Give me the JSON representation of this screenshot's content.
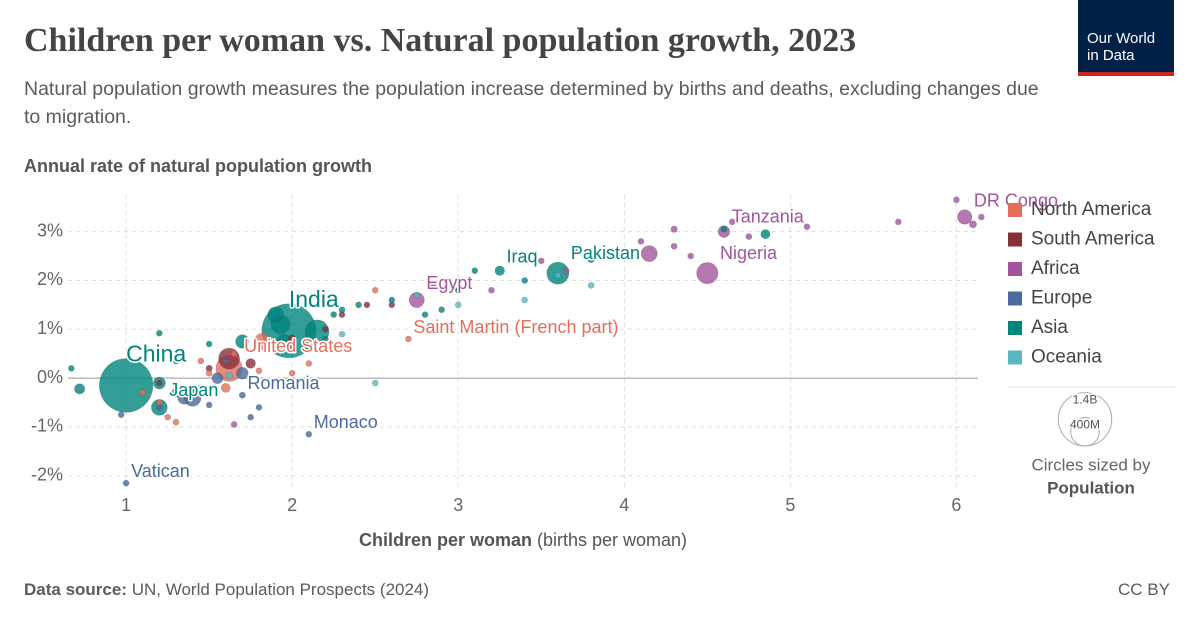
{
  "header": {
    "title": "Children per woman vs. Natural population growth, 2023",
    "subtitle": "Natural population growth measures the population increase determined by births and deaths, excluding changes due to migration.",
    "logo": "Our World in Data"
  },
  "footer": {
    "source_label": "Data source:",
    "source": "UN, World Population Prospects (2024)",
    "license": "CC BY"
  },
  "chart_data": {
    "type": "scatter",
    "y_label": "Annual rate of natural population growth",
    "x_label": "Children per woman",
    "x_label_unit": "(births per woman)",
    "xlim": [
      0.65,
      6.13
    ],
    "xticks": [
      1,
      2,
      3,
      4,
      5,
      6
    ],
    "ylim": [
      -2.25,
      3.75
    ],
    "yticks": [
      {
        "value": -2,
        "label": "-2%"
      },
      {
        "value": -1,
        "label": "-1%"
      },
      {
        "value": 0,
        "label": "0%"
      },
      {
        "value": 1,
        "label": "1%"
      },
      {
        "value": 2,
        "label": "2%"
      },
      {
        "value": 3,
        "label": "3%"
      }
    ],
    "grid": true,
    "size_legend": {
      "title": "Circles sized by",
      "variable": "Population",
      "sizes": [
        {
          "value": 1400000000,
          "label": "1.4B"
        },
        {
          "value": 400000000,
          "label": "400M"
        }
      ]
    },
    "series": [
      {
        "name": "North America",
        "color": "#e56e5a",
        "x": [
          1.62,
          2.7,
          1.82,
          1.2,
          1.25,
          1.5,
          1.65,
          1.8,
          2.0,
          1.1,
          1.3,
          1.45,
          2.5,
          2.1,
          2.3,
          1.6
        ],
        "values": [
          0.2,
          0.8,
          0.75,
          -0.5,
          -0.8,
          0.1,
          0.5,
          0.15,
          0.1,
          -0.3,
          -0.9,
          0.35,
          1.8,
          0.3,
          0.6,
          -0.2
        ],
        "sizes": [
          335000000,
          32000,
          128000000,
          1000000,
          500000,
          3000000,
          4000000,
          3000000,
          2000000,
          1000000,
          500000,
          6000000,
          1000000,
          2000000,
          10000000,
          40000000
        ],
        "labels": [
          "United States",
          "Saint Martin (French part)",
          null,
          null,
          null,
          null,
          null,
          null,
          null,
          null,
          null,
          null,
          null,
          null,
          null,
          null
        ]
      },
      {
        "name": "South America",
        "color": "#883039",
        "x": [
          1.62,
          1.2,
          1.9,
          2.3,
          2.2,
          1.5,
          2.45,
          2.0,
          1.75,
          2.6
        ],
        "values": [
          0.4,
          -0.1,
          0.6,
          1.3,
          1.0,
          0.2,
          1.5,
          0.8,
          0.3,
          1.5
        ],
        "sizes": [
          216000000,
          3000000,
          20000000,
          12000000,
          9000000,
          20000000,
          2000000,
          34000000,
          46000000,
          7000000
        ],
        "labels": [
          null,
          null,
          null,
          null,
          null,
          null,
          null,
          null,
          null,
          null
        ]
      },
      {
        "name": "Africa",
        "color": "#a2559c",
        "x": [
          6.05,
          4.6,
          4.5,
          2.75,
          4.15,
          6.0,
          6.1,
          6.15,
          5.65,
          5.1,
          4.3,
          4.3,
          4.1,
          3.9,
          3.7,
          3.5,
          3.0,
          4.65,
          4.4,
          1.65,
          3.2,
          4.75,
          2.85,
          3.65
        ],
        "values": [
          3.3,
          3.0,
          2.15,
          1.6,
          2.55,
          3.65,
          3.15,
          3.3,
          3.2,
          3.1,
          3.05,
          2.7,
          2.8,
          2.5,
          2.6,
          2.4,
          2.0,
          3.2,
          2.5,
          -0.95,
          1.8,
          2.9,
          1.9,
          2.2
        ],
        "sizes": [
          102000000,
          67000000,
          223000000,
          113000000,
          126000000,
          8000000,
          25000000,
          5000000,
          6000000,
          5000000,
          20000000,
          15000000,
          6000000,
          10000000,
          8000000,
          6000000,
          12000000,
          10000000,
          8000000,
          2000000,
          4000000,
          8000000,
          5000000,
          6000000
        ],
        "labels": [
          "DR Congo",
          "Tanzania",
          "Nigeria",
          "Egypt",
          null,
          null,
          null,
          null,
          null,
          null,
          null,
          null,
          null,
          null,
          null,
          null,
          null,
          null,
          null,
          null,
          null,
          null,
          null,
          null
        ]
      },
      {
        "name": "Europe",
        "color": "#4c6a9c",
        "x": [
          1.7,
          2.1,
          1.0,
          1.4,
          1.35,
          1.2,
          0.97,
          1.5,
          1.3,
          1.8,
          1.55,
          1.7,
          1.75,
          1.45,
          1.6
        ],
        "values": [
          -0.35,
          -1.15,
          -2.15,
          -0.4,
          -0.4,
          -0.6,
          -0.75,
          -0.55,
          -0.3,
          -0.6,
          0.0,
          0.1,
          -0.8,
          -0.2,
          0.35
        ],
        "sizes": [
          19000000,
          38000,
          500,
          144000000,
          84000000,
          10000000,
          5000000,
          7000000,
          38000000,
          2000000,
          60000000,
          68000000,
          1000000,
          10000000,
          6000000
        ],
        "labels": [
          "Romania",
          "Monaco",
          "Vatican",
          null,
          null,
          null,
          null,
          null,
          null,
          null,
          null,
          null,
          null,
          null,
          null
        ]
      },
      {
        "name": "Asia",
        "color": "#00847e",
        "x": [
          1.0,
          1.98,
          1.2,
          3.25,
          3.6,
          2.15,
          1.93,
          1.9,
          1.95,
          1.2,
          0.72,
          1.7,
          4.85,
          3.8,
          0.67,
          1.2,
          1.5,
          2.3,
          2.4,
          2.6,
          2.9,
          3.1,
          3.4,
          4.6,
          1.3,
          2.25,
          2.2,
          2.8,
          3.0
        ],
        "values": [
          -0.15,
          0.97,
          -0.6,
          2.2,
          2.15,
          0.95,
          1.1,
          1.3,
          0.75,
          -0.1,
          -0.22,
          0.75,
          2.95,
          2.45,
          0.2,
          0.92,
          0.7,
          1.4,
          1.5,
          1.6,
          1.4,
          2.2,
          2.0,
          3.05,
          0.35,
          1.3,
          0.8,
          1.3,
          1.8
        ],
        "sizes": [
          1410000000,
          1430000000,
          124000000,
          45000000,
          240000000,
          277000000,
          173000000,
          117000000,
          99000000,
          72000000,
          52000000,
          89000000,
          42000000,
          34000000,
          5000000,
          5000000,
          8000000,
          10000000,
          6000000,
          5000000,
          4000000,
          5000000,
          5000000,
          6000000,
          9000000,
          6000000,
          3000000,
          2000000,
          3000000
        ],
        "labels": [
          "China",
          "India",
          "Japan",
          "Iraq",
          "Pakistan",
          null,
          null,
          null,
          null,
          null,
          null,
          null,
          null,
          null,
          null,
          null,
          null,
          null,
          null,
          null,
          null,
          null,
          null,
          null,
          null,
          null,
          null,
          null,
          null
        ]
      },
      {
        "name": "Oceania",
        "color": "#5ab7c1",
        "x": [
          2.5,
          2.3,
          3.0,
          3.4,
          3.8,
          2.75,
          1.62,
          3.6
        ],
        "values": [
          -0.1,
          0.9,
          1.5,
          1.6,
          1.9,
          1.7,
          0.05,
          2.1
        ],
        "sizes": [
          100000,
          1000000,
          500000,
          1000000,
          300000,
          500000,
          26000000,
          10000000
        ],
        "labels": [
          null,
          null,
          null,
          null,
          null,
          null,
          null,
          null
        ]
      }
    ]
  }
}
